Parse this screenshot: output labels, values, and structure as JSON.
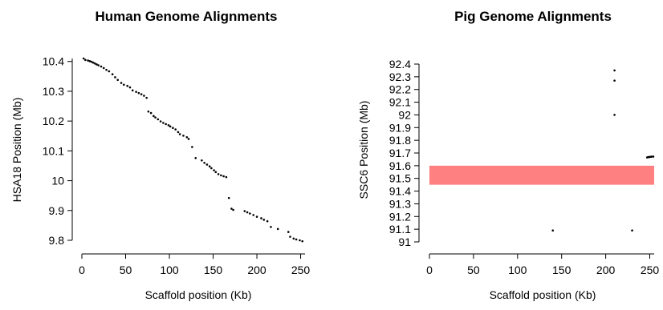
{
  "chart_data": [
    {
      "type": "scatter",
      "title": "Human Genome Alignments",
      "xlabel": "Scaffold position (Kb)",
      "ylabel": "HSA18 Position (Mb)",
      "xlim": [
        0,
        255
      ],
      "ylim": [
        9.8,
        10.41
      ],
      "xticks": [
        "0",
        "50",
        "100",
        "150",
        "200",
        "250"
      ],
      "yticks": [
        "9.8",
        "9.9",
        "10",
        "10.1",
        "10.2",
        "10.3",
        "10.4"
      ],
      "series": [
        {
          "x": [
            2,
            4,
            7,
            9,
            11,
            13,
            15,
            17,
            19,
            22,
            25,
            28,
            31,
            35,
            38,
            41,
            45,
            48,
            52,
            55,
            58,
            62,
            65,
            68,
            71,
            74,
            76,
            79,
            82,
            84,
            87,
            90,
            93,
            96,
            99,
            101,
            104,
            107,
            110,
            112,
            116,
            120,
            122,
            126,
            130,
            137,
            140,
            143,
            146,
            148,
            151,
            153,
            156,
            159,
            162,
            165,
            168,
            171,
            173,
            186,
            189,
            192,
            196,
            200,
            205,
            208,
            212,
            216,
            224,
            236,
            238,
            242,
            245,
            249,
            252
          ],
          "y": [
            10.41,
            10.405,
            10.403,
            10.401,
            10.399,
            10.396,
            10.393,
            10.39,
            10.387,
            10.383,
            10.378,
            10.372,
            10.367,
            10.357,
            10.347,
            10.338,
            10.328,
            10.322,
            10.318,
            10.313,
            10.303,
            10.298,
            10.294,
            10.29,
            10.285,
            10.278,
            10.232,
            10.227,
            10.217,
            10.212,
            10.206,
            10.199,
            10.194,
            10.19,
            10.186,
            10.182,
            10.177,
            10.172,
            10.163,
            10.156,
            10.151,
            10.146,
            10.14,
            10.113,
            10.076,
            10.068,
            10.06,
            10.054,
            10.048,
            10.042,
            10.035,
            10.029,
            10.022,
            10.018,
            10.015,
            10.012,
            9.942,
            9.906,
            9.902,
            9.898,
            9.894,
            9.89,
            9.885,
            9.879,
            9.874,
            9.869,
            9.864,
            9.845,
            9.838,
            9.828,
            9.812,
            9.806,
            9.803,
            9.8,
            9.797
          ]
        }
      ]
    },
    {
      "type": "scatter",
      "title": "Pig Genome Alignments",
      "xlabel": "Scaffold position (Kb)",
      "ylabel": "SSC6 Position (Mb)",
      "xlim": [
        0,
        255
      ],
      "ylim": [
        91.0,
        92.4
      ],
      "xticks": [
        "0",
        "50",
        "100",
        "150",
        "200",
        "250"
      ],
      "yticks": [
        "91",
        "91.1",
        "91.2",
        "91.3",
        "91.4",
        "91.5",
        "91.6",
        "91.7",
        "91.8",
        "91.9",
        "92",
        "92.1",
        "92.2",
        "92.3",
        "92.4"
      ],
      "band": {
        "y_range": [
          91.45,
          91.6
        ],
        "color": "#ff8080"
      },
      "series": [
        {
          "x": [
            140,
            210,
            210,
            210,
            230,
            247,
            248,
            249,
            250,
            251,
            252,
            254
          ],
          "y": [
            91.09,
            92.35,
            92.27,
            92.0,
            91.09,
            91.665,
            91.667,
            91.668,
            91.669,
            91.67,
            91.671,
            91.672
          ]
        }
      ]
    }
  ]
}
